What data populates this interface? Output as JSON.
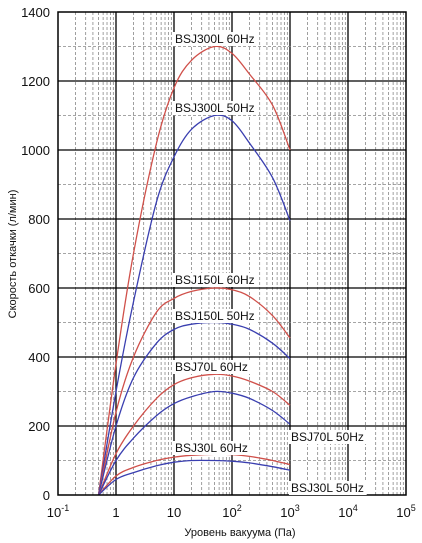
{
  "chart_data": {
    "type": "line",
    "xscale": "log",
    "xlabel": "Уровень вакуума (Па)",
    "ylabel": "Скорость откачки (л/мин)",
    "xlim": [
      0.1,
      100000
    ],
    "ylim": [
      0,
      1400
    ],
    "x_ticks": [
      {
        "base": "10",
        "exp": "-1",
        "value": 0.1
      },
      {
        "base": "1",
        "exp": "",
        "value": 1
      },
      {
        "base": "10",
        "exp": "",
        "value": 10
      },
      {
        "base": "10",
        "exp": "2",
        "value": 100
      },
      {
        "base": "10",
        "exp": "3",
        "value": 1000
      },
      {
        "base": "10",
        "exp": "4",
        "value": 10000
      },
      {
        "base": "10",
        "exp": "5",
        "value": 100000
      }
    ],
    "y_ticks": [
      "0",
      "200",
      "400",
      "600",
      "800",
      "1000",
      "1200",
      "1400"
    ],
    "grid": true,
    "series": [
      {
        "name": "BSJ300L 60Hz",
        "color": "#d0504a",
        "x": [
          0.5,
          1,
          2,
          5,
          10,
          20,
          50,
          100,
          200,
          500,
          1000
        ],
        "y": [
          0,
          380,
          700,
          1020,
          1180,
          1260,
          1300,
          1280,
          1220,
          1130,
          1000
        ]
      },
      {
        "name": "BSJ300L 50Hz",
        "color": "#3a3fb0",
        "x": [
          0.5,
          1,
          2,
          5,
          10,
          20,
          50,
          100,
          200,
          500,
          1000
        ],
        "y": [
          0,
          300,
          560,
          850,
          980,
          1060,
          1100,
          1085,
          1020,
          920,
          795
        ]
      },
      {
        "name": "BSJ150L 60Hz",
        "color": "#d0504a",
        "x": [
          0.5,
          1,
          2,
          5,
          10,
          20,
          50,
          100,
          200,
          500,
          1000
        ],
        "y": [
          0,
          240,
          400,
          530,
          570,
          590,
          600,
          595,
          575,
          520,
          455
        ]
      },
      {
        "name": "BSJ150L 50Hz",
        "color": "#3a3fb0",
        "x": [
          0.5,
          1,
          2,
          5,
          10,
          20,
          50,
          100,
          200,
          500,
          1000
        ],
        "y": [
          0,
          200,
          340,
          440,
          480,
          495,
          500,
          495,
          480,
          440,
          395
        ]
      },
      {
        "name": "BSJ70L 60Hz",
        "color": "#d0504a",
        "x": [
          0.5,
          1,
          2,
          5,
          10,
          20,
          50,
          100,
          200,
          500,
          1000
        ],
        "y": [
          0,
          120,
          200,
          280,
          320,
          340,
          350,
          345,
          330,
          300,
          260
        ]
      },
      {
        "name": "BSJ70L 50Hz",
        "color": "#3a3fb0",
        "x": [
          0.5,
          1,
          2,
          5,
          10,
          20,
          50,
          100,
          200,
          500,
          1000
        ],
        "y": [
          0,
          100,
          165,
          230,
          265,
          285,
          300,
          295,
          280,
          245,
          205
        ]
      },
      {
        "name": "BSJ30L 60Hz",
        "color": "#d0504a",
        "x": [
          0.5,
          1,
          2,
          5,
          10,
          20,
          50,
          100,
          200,
          500,
          1000
        ],
        "y": [
          0,
          55,
          80,
          100,
          110,
          115,
          118,
          117,
          112,
          100,
          88
        ]
      },
      {
        "name": "BSJ30L 50Hz",
        "color": "#3a3fb0",
        "x": [
          0.5,
          1,
          2,
          5,
          10,
          20,
          50,
          100,
          200,
          500,
          1000
        ],
        "y": [
          0,
          45,
          65,
          85,
          95,
          100,
          100,
          98,
          93,
          82,
          72
        ]
      }
    ]
  }
}
